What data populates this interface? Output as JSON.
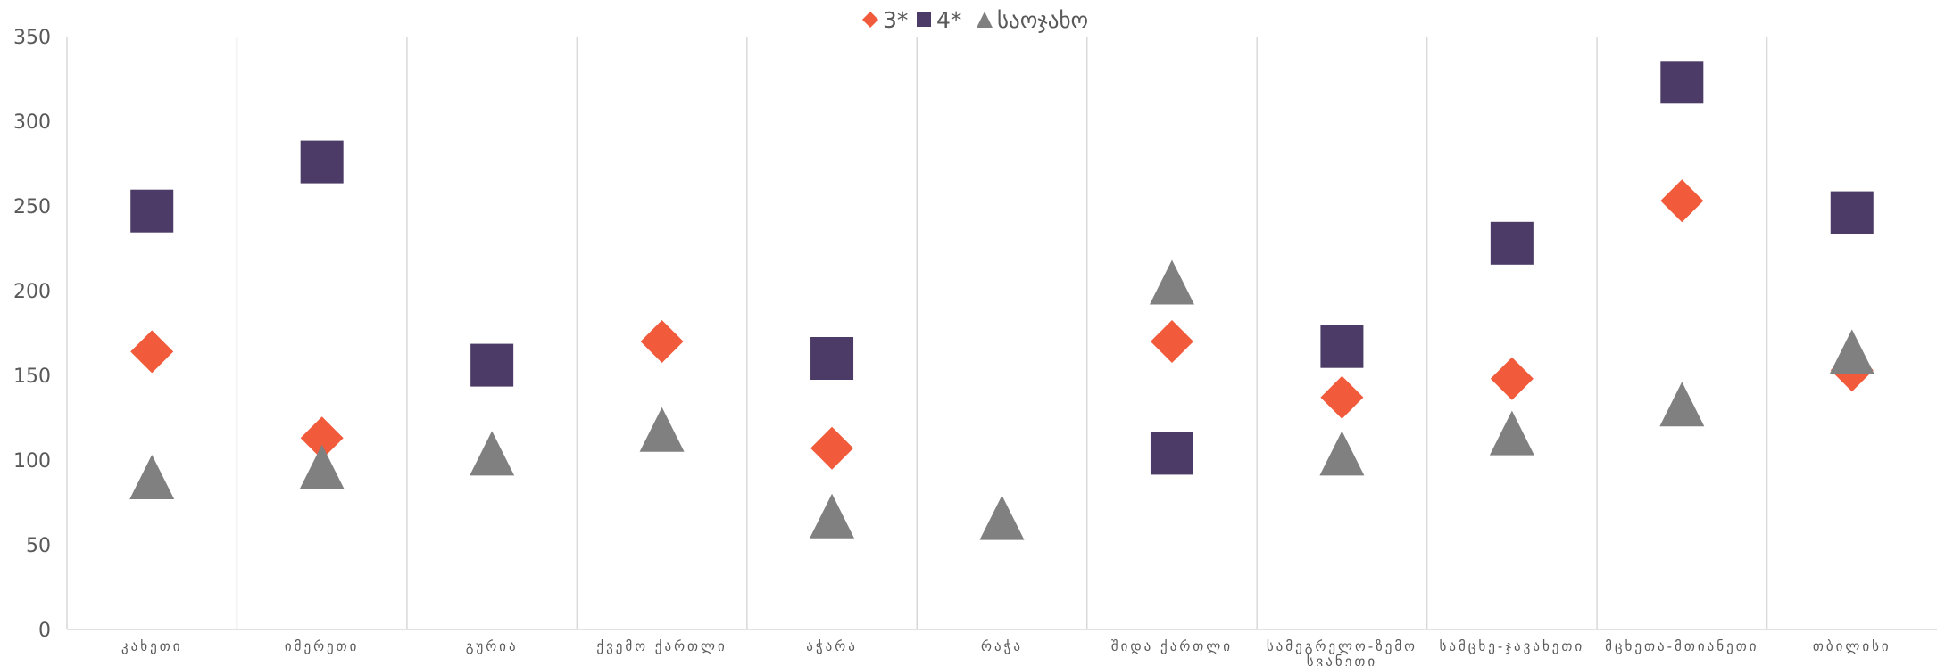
{
  "chart_data": {
    "type": "scatter",
    "categories": [
      "კახეთი",
      "იმერეთი",
      "გურია",
      "ქვემო ქართლი",
      "აჭარა",
      "რაჭა",
      "შიდა ქართლი",
      "სამეგრელო-ზემო სვანეთი",
      "სამცხე-ჯავახეთი",
      "მცხეთა-მთიანეთი",
      "თბილისი"
    ],
    "series": [
      {
        "name": "3*",
        "marker": "diamond",
        "color": "#F15A3A",
        "values": [
          164,
          113,
          null,
          170,
          107,
          null,
          170,
          137,
          148,
          253,
          153
        ]
      },
      {
        "name": "4*",
        "marker": "square",
        "color": "#4B3B66",
        "values": [
          247,
          276,
          156,
          null,
          160,
          null,
          104,
          167,
          228,
          323,
          246
        ]
      },
      {
        "name": "საოჯახო",
        "marker": "triangle",
        "color": "#808080",
        "values": [
          90,
          96,
          104,
          118,
          67,
          66,
          205,
          104,
          116,
          133,
          164
        ]
      }
    ],
    "ylim": [
      0,
      350
    ],
    "yticks": [
      "0",
      "50",
      "100",
      "150",
      "200",
      "250",
      "300",
      "350"
    ],
    "grid": "vertical category separators",
    "legend": "top-center"
  }
}
